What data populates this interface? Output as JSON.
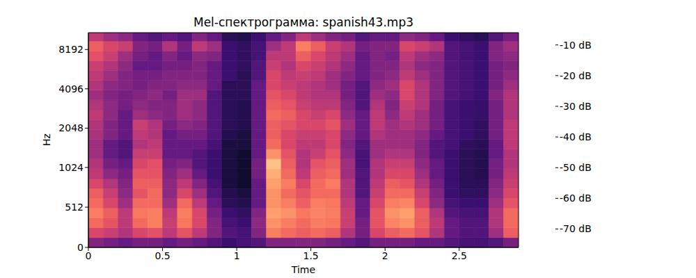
{
  "chart_data": {
    "type": "heatmap",
    "title": "Mel-спектрограмма: spanish43.mp3",
    "x_label": "Time",
    "y_label": "Hz",
    "xlim": [
      0,
      2.9
    ],
    "ylim": [
      0,
      11025
    ],
    "xticks": [
      0,
      0.5,
      1,
      1.5,
      2,
      2.5
    ],
    "yticks": [
      0,
      512,
      1024,
      2048,
      4096,
      8192
    ],
    "x_edges": [
      0,
      0.1,
      0.2,
      0.3,
      0.4,
      0.5,
      0.6,
      0.7,
      0.8,
      0.9,
      1.0,
      1.1,
      1.2,
      1.3,
      1.4,
      1.5,
      1.6,
      1.7,
      1.8,
      1.9,
      2.0,
      2.1,
      2.2,
      2.3,
      2.4,
      2.5,
      2.6,
      2.7,
      2.8,
      2.9
    ],
    "y_edges": [
      0,
      125,
      250,
      375,
      500,
      625,
      750,
      875,
      1000,
      1189,
      1414,
      1682,
      2000,
      2378,
      2828,
      3364,
      4000,
      4757,
      5657,
      6727,
      8000,
      9514,
      11025
    ],
    "cells": [
      [
        -50,
        -35,
        -28,
        -25,
        -28,
        -30,
        -35,
        -40,
        -42,
        -45,
        -45,
        -43,
        -42,
        -40,
        -42,
        -45,
        -42,
        -40,
        -38,
        -33,
        -30,
        -40
      ],
      [
        -52,
        -38,
        -32,
        -30,
        -35,
        -38,
        -42,
        -48,
        -52,
        -55,
        -55,
        -50,
        -50,
        -48,
        -48,
        -50,
        -48,
        -45,
        -42,
        -38,
        -35,
        -45
      ],
      [
        -55,
        -42,
        -40,
        -40,
        -45,
        -48,
        -50,
        -52,
        -55,
        -58,
        -58,
        -55,
        -55,
        -55,
        -52,
        -52,
        -50,
        -50,
        -48,
        -45,
        -38,
        -48
      ],
      [
        -52,
        -35,
        -28,
        -26,
        -28,
        -32,
        -30,
        -32,
        -35,
        -38,
        -42,
        -40,
        -38,
        -45,
        -48,
        -50,
        -52,
        -52,
        -55,
        -52,
        -50,
        -55
      ],
      [
        -52,
        -33,
        -25,
        -25,
        -28,
        -28,
        -30,
        -32,
        -33,
        -38,
        -40,
        -42,
        -42,
        -48,
        -50,
        -48,
        -50,
        -52,
        -55,
        -55,
        -52,
        -58
      ],
      [
        -55,
        -40,
        -38,
        -40,
        -45,
        -48,
        -48,
        -50,
        -52,
        -55,
        -55,
        -55,
        -52,
        -50,
        -50,
        -52,
        -50,
        -50,
        -52,
        -50,
        -42,
        -55
      ],
      [
        -52,
        -32,
        -26,
        -25,
        -28,
        -35,
        -40,
        -45,
        -50,
        -55,
        -55,
        -52,
        -48,
        -45,
        -45,
        -45,
        -48,
        -50,
        -52,
        -55,
        -52,
        -58
      ],
      [
        -55,
        -40,
        -35,
        -35,
        -40,
        -45,
        -50,
        -55,
        -58,
        -58,
        -55,
        -52,
        -50,
        -48,
        -48,
        -45,
        -48,
        -50,
        -50,
        -48,
        -40,
        -50
      ],
      [
        -58,
        -50,
        -50,
        -52,
        -55,
        -58,
        -60,
        -62,
        -62,
        -62,
        -60,
        -58,
        -58,
        -58,
        -58,
        -58,
        -55,
        -55,
        -55,
        -50,
        -45,
        -55
      ],
      [
        -62,
        -58,
        -60,
        -62,
        -65,
        -66,
        -68,
        -68,
        -68,
        -68,
        -68,
        -66,
        -65,
        -65,
        -65,
        -65,
        -65,
        -62,
        -62,
        -62,
        -62,
        -65
      ],
      [
        -60,
        -60,
        -62,
        -64,
        -66,
        -68,
        -70,
        -70,
        -70,
        -70,
        -68,
        -68,
        -66,
        -66,
        -66,
        -65,
        -65,
        -65,
        -64,
        -64,
        -64,
        -66
      ],
      [
        -58,
        -50,
        -48,
        -50,
        -55,
        -55,
        -55,
        -52,
        -52,
        -55,
        -55,
        -55,
        -55,
        -55,
        -55,
        -55,
        -55,
        -58,
        -58,
        -60,
        -60,
        -62
      ],
      [
        -50,
        -25,
        -22,
        -20,
        -22,
        -22,
        -20,
        -18,
        -15,
        -22,
        -28,
        -30,
        -30,
        -28,
        -30,
        -32,
        -35,
        -35,
        -38,
        -40,
        -45,
        -55
      ],
      [
        -50,
        -28,
        -25,
        -22,
        -25,
        -28,
        -25,
        -28,
        -30,
        -32,
        -35,
        -35,
        -32,
        -30,
        -32,
        -35,
        -38,
        -40,
        -42,
        -40,
        -40,
        -50
      ],
      [
        -50,
        -30,
        -28,
        -26,
        -30,
        -32,
        -35,
        -40,
        -42,
        -42,
        -40,
        -38,
        -35,
        -35,
        -38,
        -40,
        -40,
        -38,
        -35,
        -30,
        -25,
        -40
      ],
      [
        -50,
        -28,
        -25,
        -24,
        -25,
        -28,
        -28,
        -30,
        -32,
        -38,
        -40,
        -38,
        -35,
        -38,
        -40,
        -42,
        -42,
        -40,
        -38,
        -35,
        -30,
        -45
      ],
      [
        -52,
        -30,
        -26,
        -25,
        -26,
        -28,
        -25,
        -28,
        -30,
        -32,
        -35,
        -35,
        -32,
        -35,
        -40,
        -42,
        -45,
        -45,
        -42,
        -40,
        -38,
        -50
      ],
      [
        -55,
        -42,
        -38,
        -38,
        -40,
        -42,
        -42,
        -45,
        -45,
        -48,
        -50,
        -48,
        -45,
        -48,
        -50,
        -52,
        -52,
        -50,
        -48,
        -45,
        -42,
        -52
      ],
      [
        -58,
        -52,
        -52,
        -55,
        -55,
        -58,
        -58,
        -58,
        -60,
        -60,
        -58,
        -55,
        -55,
        -55,
        -58,
        -58,
        -58,
        -55,
        -55,
        -55,
        -52,
        -58
      ],
      [
        -52,
        -35,
        -32,
        -32,
        -35,
        -38,
        -40,
        -42,
        -42,
        -45,
        -45,
        -42,
        -40,
        -40,
        -42,
        -45,
        -48,
        -50,
        -50,
        -50,
        -50,
        -55
      ],
      [
        -52,
        -30,
        -24,
        -22,
        -25,
        -28,
        -30,
        -35,
        -38,
        -42,
        -45,
        -45,
        -45,
        -48,
        -50,
        -48,
        -45,
        -48,
        -50,
        -52,
        -50,
        -55
      ],
      [
        -52,
        -28,
        -22,
        -20,
        -24,
        -28,
        -32,
        -35,
        -38,
        -42,
        -45,
        -45,
        -42,
        -40,
        -38,
        -35,
        -35,
        -40,
        -42,
        -40,
        -35,
        -48
      ],
      [
        -55,
        -32,
        -30,
        -30,
        -35,
        -38,
        -42,
        -45,
        -48,
        -50,
        -50,
        -48,
        -45,
        -45,
        -42,
        -42,
        -42,
        -45,
        -48,
        -45,
        -38,
        -50
      ],
      [
        -55,
        -42,
        -40,
        -42,
        -48,
        -50,
        -52,
        -55,
        -55,
        -58,
        -58,
        -55,
        -52,
        -52,
        -52,
        -50,
        -50,
        -50,
        -50,
        -48,
        -42,
        -55
      ],
      [
        -58,
        -55,
        -55,
        -58,
        -60,
        -62,
        -62,
        -62,
        -62,
        -62,
        -60,
        -60,
        -60,
        -60,
        -60,
        -58,
        -58,
        -58,
        -58,
        -58,
        -58,
        -62
      ],
      [
        -60,
        -58,
        -58,
        -60,
        -62,
        -64,
        -65,
        -65,
        -65,
        -65,
        -64,
        -62,
        -62,
        -62,
        -62,
        -60,
        -60,
        -60,
        -60,
        -60,
        -60,
        -64
      ],
      [
        -60,
        -58,
        -58,
        -60,
        -62,
        -64,
        -65,
        -66,
        -66,
        -66,
        -65,
        -64,
        -64,
        -63,
        -63,
        -62,
        -62,
        -62,
        -62,
        -62,
        -62,
        -65
      ],
      [
        -58,
        -45,
        -42,
        -42,
        -45,
        -48,
        -50,
        -52,
        -52,
        -55,
        -55,
        -52,
        -52,
        -52,
        -52,
        -50,
        -52,
        -52,
        -52,
        -50,
        -50,
        -58
      ],
      [
        -52,
        -30,
        -28,
        -28,
        -32,
        -35,
        -38,
        -40,
        -42,
        -42,
        -40,
        -40,
        -40,
        -42,
        -42,
        -42,
        -45,
        -48,
        -50,
        -48,
        -45,
        -52
      ]
    ],
    "colorbar_lim": [
      -76,
      -6
    ],
    "colorbar_ticks": [
      {
        "value": -10,
        "label": "-10 dB"
      },
      {
        "value": -20,
        "label": "-20 dB"
      },
      {
        "value": -30,
        "label": "-30 dB"
      },
      {
        "value": -40,
        "label": "-40 dB"
      },
      {
        "value": -50,
        "label": "-50 dB"
      },
      {
        "value": -60,
        "label": "-60 dB"
      },
      {
        "value": -70,
        "label": "-70 dB"
      }
    ]
  }
}
